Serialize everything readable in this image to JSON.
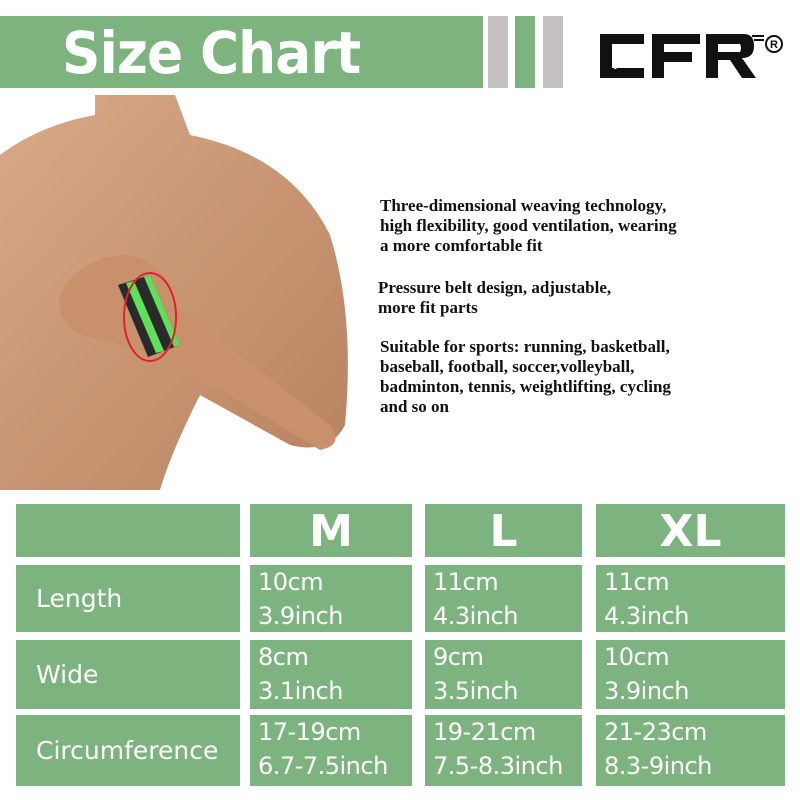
{
  "header": {
    "title": "Size Chart",
    "brand_logo": "CFR"
  },
  "colors": {
    "accent_green": "#7db37e",
    "stripe_grey": "#c4c1c0"
  },
  "features": [
    [
      "Three-dimensional weaving technology,",
      "high flexibility, good ventilation, wearing",
      "a more comfortable fit"
    ],
    [
      "Pressure belt design, adjustable,",
      "more fit parts"
    ],
    [
      "Suitable for sports: running, basketball,",
      "baseball, football, soccer,volleyball,",
      "badminton, tennis, weightlifting, cycling",
      "and so on"
    ]
  ],
  "table": {
    "sizes": [
      "M",
      "L",
      "XL"
    ],
    "rows": [
      {
        "label": "Length",
        "values": [
          [
            "10cm",
            "3.9inch"
          ],
          [
            "11cm",
            "4.3inch"
          ],
          [
            "11cm",
            "4.3inch"
          ]
        ]
      },
      {
        "label": "Wide",
        "values": [
          [
            "8cm",
            "3.1inch"
          ],
          [
            "9cm",
            "3.5inch"
          ],
          [
            "10cm",
            "3.9inch"
          ]
        ]
      },
      {
        "label": "Circumference",
        "values": [
          [
            "17-19cm",
            "6.7-7.5inch"
          ],
          [
            "19-21cm",
            "7.5-8.3inch"
          ],
          [
            "21-23cm",
            "8.3-9inch"
          ]
        ]
      }
    ]
  }
}
